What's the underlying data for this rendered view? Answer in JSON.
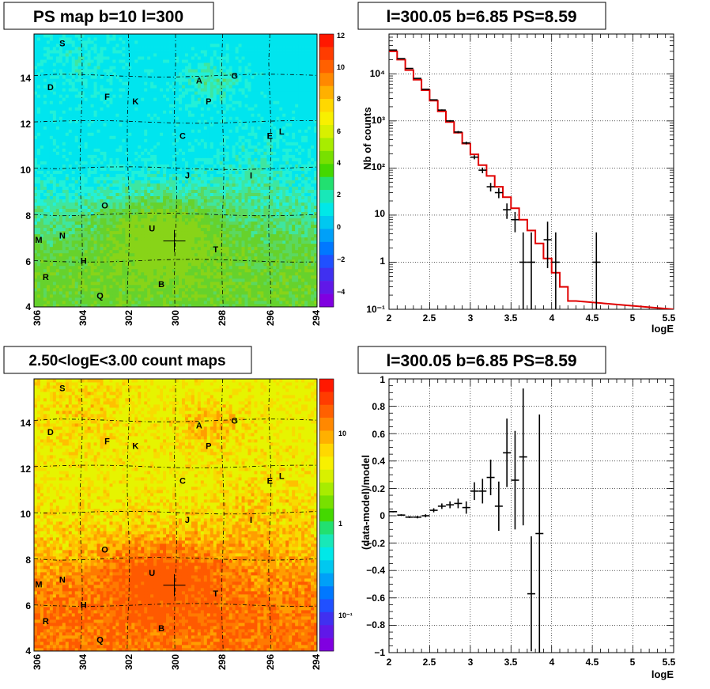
{
  "panels": {
    "ps_map": {
      "title": "PS map b=10 l=300",
      "x_ticks": [
        "306",
        "304",
        "302",
        "300",
        "298",
        "296",
        "294"
      ],
      "y_ticks": [
        "4",
        "6",
        "8",
        "10",
        "12",
        "14"
      ],
      "colorbar_ticks": [
        "12",
        "10",
        "8",
        "6",
        "4",
        "2",
        "0",
        "−2",
        "−4"
      ]
    },
    "count_map": {
      "title": "2.50<logE<3.00 count maps",
      "x_ticks": [
        "306",
        "304",
        "302",
        "300",
        "298",
        "296",
        "294"
      ],
      "y_ticks": [
        "4",
        "6",
        "8",
        "10",
        "12",
        "14"
      ],
      "colorbar_ticks": [
        "10",
        "1",
        "10⁻¹"
      ]
    },
    "spectrum": {
      "title": "l=300.05 b=6.85 PS=8.59",
      "xlabel": "logE",
      "ylabel": "Nb of counts",
      "x_ticks": [
        "2",
        "2.5",
        "3",
        "3.5",
        "4",
        "4.5",
        "5",
        "5.5"
      ],
      "y_ticks": [
        "10⁴",
        "10³",
        "10²",
        "10",
        "1",
        "10⁻¹"
      ]
    },
    "residual": {
      "title": "l=300.05 b=6.85 PS=8.59",
      "xlabel": "logE",
      "ylabel": "(data-model)/model",
      "x_ticks": [
        "2",
        "2.5",
        "3",
        "3.5",
        "4",
        "4.5",
        "5",
        "5.5"
      ],
      "y_ticks": [
        "1",
        "0.8",
        "0.6",
        "0.4",
        "0.2",
        "0",
        "−0.2",
        "−0.4",
        "−0.6",
        "−0.8",
        "−1"
      ]
    }
  },
  "sources": [
    {
      "label": "S",
      "l": 304.8,
      "b": 15.4
    },
    {
      "label": "D",
      "l": 305.3,
      "b": 13.5
    },
    {
      "label": "F",
      "l": 302.9,
      "b": 13.1
    },
    {
      "label": "K",
      "l": 301.7,
      "b": 12.9
    },
    {
      "label": "A",
      "l": 299.0,
      "b": 13.8
    },
    {
      "label": "G",
      "l": 297.5,
      "b": 14.0
    },
    {
      "label": "P",
      "l": 298.6,
      "b": 12.9
    },
    {
      "label": "C",
      "l": 299.7,
      "b": 11.4
    },
    {
      "label": "E",
      "l": 296.0,
      "b": 11.4
    },
    {
      "label": "L",
      "l": 295.5,
      "b": 11.6
    },
    {
      "label": "J",
      "l": 299.5,
      "b": 9.7
    },
    {
      "label": "I",
      "l": 296.8,
      "b": 9.7
    },
    {
      "label": "O",
      "l": 303.0,
      "b": 8.4
    },
    {
      "label": "U",
      "l": 301.0,
      "b": 7.4
    },
    {
      "label": "M",
      "l": 305.8,
      "b": 6.9
    },
    {
      "label": "N",
      "l": 304.8,
      "b": 7.1
    },
    {
      "label": "T",
      "l": 298.3,
      "b": 6.5
    },
    {
      "label": "H",
      "l": 303.9,
      "b": 6.0
    },
    {
      "label": "R",
      "l": 305.5,
      "b": 5.3
    },
    {
      "label": "B",
      "l": 300.6,
      "b": 5.0
    },
    {
      "label": "Q",
      "l": 303.2,
      "b": 4.5
    }
  ],
  "marker": {
    "l": 300.05,
    "b": 6.85
  },
  "chart_data": [
    {
      "type": "heatmap",
      "title": "PS map b=10 l=300",
      "xlim": [
        306,
        294
      ],
      "ylim": [
        4,
        15.8
      ],
      "zlim": [
        -5,
        12
      ],
      "description_colors": "low values blue/cyan, high values red",
      "grid": true
    },
    {
      "type": "heatmap",
      "title": "2.50<logE<3.00 count maps",
      "xlim": [
        306,
        294
      ],
      "ylim": [
        4,
        15.8
      ],
      "zscale": "log",
      "grid": true
    },
    {
      "type": "line",
      "title": "l=300.05 b=6.85 PS=8.59",
      "xlabel": "logE",
      "ylabel": "Nb of counts",
      "xlim": [
        2,
        5.5
      ],
      "ylim": [
        0.1,
        70000
      ],
      "yscale": "log",
      "grid": true,
      "model_bin_width": 0.1,
      "model": [
        30000,
        20000,
        12000,
        7500,
        4500,
        2700,
        1600,
        950,
        560,
        330,
        195,
        115,
        68,
        40,
        24,
        14,
        8,
        4.7,
        2.5,
        1.2,
        0.6,
        0.3,
        0.15
      ],
      "data": [
        {
          "x": 2.05,
          "y": 32000
        },
        {
          "x": 2.15,
          "y": 21000
        },
        {
          "x": 2.25,
          "y": 13000
        },
        {
          "x": 2.35,
          "y": 8000
        },
        {
          "x": 2.45,
          "y": 4700
        },
        {
          "x": 2.55,
          "y": 2800
        },
        {
          "x": 2.65,
          "y": 1700
        },
        {
          "x": 2.75,
          "y": 1000
        },
        {
          "x": 2.85,
          "y": 580
        },
        {
          "x": 2.95,
          "y": 340
        },
        {
          "x": 3.05,
          "y": 170
        },
        {
          "x": 3.15,
          "y": 90
        },
        {
          "x": 3.25,
          "y": 40
        },
        {
          "x": 3.35,
          "y": 30
        },
        {
          "x": 3.45,
          "y": 13
        },
        {
          "x": 3.55,
          "y": 8
        },
        {
          "x": 3.65,
          "y": 1
        },
        {
          "x": 3.75,
          "y": 1
        },
        {
          "x": 3.95,
          "y": 3
        },
        {
          "x": 4.05,
          "y": 1
        },
        {
          "x": 4.55,
          "y": 1
        }
      ]
    },
    {
      "type": "scatter",
      "title": "l=300.05 b=6.85 PS=8.59",
      "xlabel": "logE",
      "ylabel": "(data-model)/model",
      "xlim": [
        2,
        5.5
      ],
      "ylim": [
        -1,
        1
      ],
      "grid": true,
      "points": [
        {
          "x": 2.05,
          "y": 0.03,
          "err": 0.005
        },
        {
          "x": 2.15,
          "y": 0.005,
          "err": 0.006
        },
        {
          "x": 2.25,
          "y": -0.01,
          "err": 0.007
        },
        {
          "x": 2.35,
          "y": -0.01,
          "err": 0.009
        },
        {
          "x": 2.45,
          "y": 0.0,
          "err": 0.011
        },
        {
          "x": 2.55,
          "y": 0.04,
          "err": 0.015
        },
        {
          "x": 2.65,
          "y": 0.07,
          "err": 0.02
        },
        {
          "x": 2.75,
          "y": 0.08,
          "err": 0.025
        },
        {
          "x": 2.85,
          "y": 0.09,
          "err": 0.035
        },
        {
          "x": 2.95,
          "y": 0.06,
          "err": 0.045
        },
        {
          "x": 3.05,
          "y": 0.18,
          "err": 0.065
        },
        {
          "x": 3.15,
          "y": 0.18,
          "err": 0.09
        },
        {
          "x": 3.25,
          "y": 0.28,
          "err": 0.13
        },
        {
          "x": 3.35,
          "y": 0.07,
          "err": 0.18
        },
        {
          "x": 3.45,
          "y": 0.46,
          "err": 0.25
        },
        {
          "x": 3.55,
          "y": 0.26,
          "err": 0.36
        },
        {
          "x": 3.65,
          "y": 0.43,
          "err": 0.5
        },
        {
          "x": 3.75,
          "y": -0.57,
          "err": 0.42
        },
        {
          "x": 3.85,
          "y": -0.13,
          "err": 0.87
        }
      ]
    }
  ]
}
